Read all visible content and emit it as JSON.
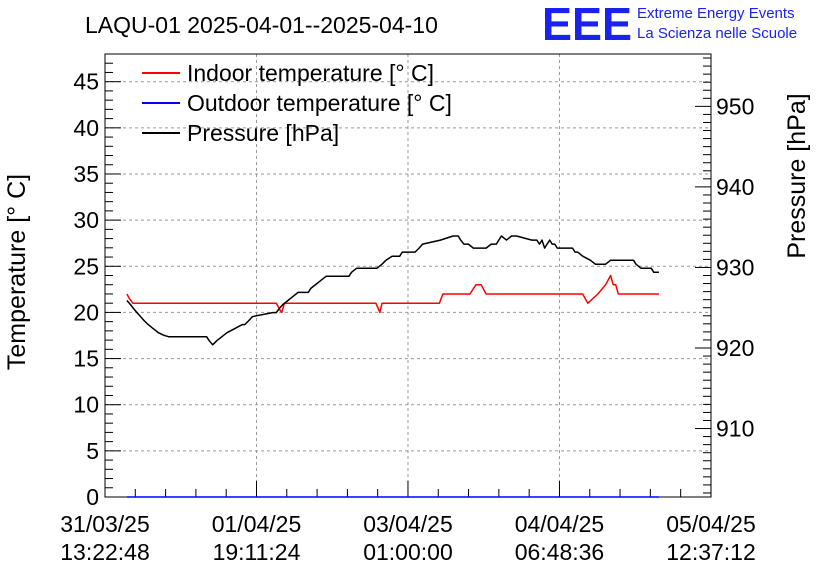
{
  "header": {
    "title": "LAQU-01 2025-04-01--2025-04-10",
    "logo_letters": "EEE",
    "logo_line1": "Extreme Energy Events",
    "logo_line2": "La Scienza nelle Scuole"
  },
  "chart_data": {
    "type": "line",
    "grid": true,
    "legend_position": "top-left",
    "x_unit": "hours since 31/03/25 13:22:48",
    "xlim": [
      0,
      119.25
    ],
    "x_ticks": [
      {
        "x": 0,
        "label_date": "31/03/25",
        "label_time": "13:22:48"
      },
      {
        "x": 29.81,
        "label_date": "01/04/25",
        "label_time": "19:11:24"
      },
      {
        "x": 59.62,
        "label_date": "03/04/25",
        "label_time": "01:00:00"
      },
      {
        "x": 89.43,
        "label_date": "04/04/25",
        "label_time": "06:48:36"
      },
      {
        "x": 119.25,
        "label_date": "05/04/25",
        "label_time": "12:37:12"
      }
    ],
    "y_left": {
      "label": "Temperature [° C]",
      "ylim": [
        0,
        48
      ],
      "ticks": [
        0,
        5,
        10,
        15,
        20,
        25,
        30,
        35,
        40,
        45
      ]
    },
    "y_right": {
      "label": "Pressure [hPa]",
      "ylim": [
        901.5,
        956.5
      ],
      "ticks": [
        910,
        920,
        930,
        940,
        950
      ]
    },
    "series": [
      {
        "name": "Indoor temperature [° C]",
        "axis": "left",
        "color": "#ff0000",
        "x": [
          4.3,
          4.8,
          5.5,
          6.3,
          33.7,
          34.5,
          34.8,
          35.3,
          53.3,
          53.7,
          54.1,
          54.5,
          65.8,
          66.5,
          71.8,
          73.0,
          74.0,
          75.0,
          94.0,
          95.0,
          97.0,
          98.5,
          99.5,
          100.0,
          100.5,
          101.0,
          109.0
        ],
        "y": [
          22,
          21.5,
          21,
          21,
          21,
          20.2,
          20,
          21,
          21,
          20.5,
          20,
          21,
          21,
          22,
          22,
          23,
          23,
          22,
          22,
          21,
          22,
          23,
          24,
          23,
          23,
          22,
          22
        ]
      },
      {
        "name": "Outdoor temperature [° C]",
        "axis": "left",
        "color": "#0000ff",
        "x": [
          4.3,
          109.0
        ],
        "y": [
          0,
          0
        ]
      },
      {
        "name": "Pressure [hPa]",
        "axis": "right",
        "color": "#000000",
        "x": [
          4.3,
          5.0,
          5.6,
          6.3,
          7.0,
          7.7,
          8.5,
          9.5,
          10.5,
          11.5,
          12.5,
          13.3,
          20.0,
          20.5,
          21.2,
          22.0,
          23.0,
          24.0,
          25.5,
          27.0,
          27.5,
          28.3,
          29.0,
          33.0,
          33.7,
          34.3,
          35.0,
          36.0,
          37.0,
          38.0,
          40.0,
          40.5,
          41.5,
          42.5,
          43.5,
          44.3,
          45.0,
          46.5,
          48.0,
          48.5,
          49.5,
          50.5,
          53.5,
          54.5,
          55.3,
          56.5,
          58.0,
          58.5,
          61.0,
          61.8,
          62.5,
          66.0,
          68.5,
          69.0,
          69.5,
          70.0,
          70.6,
          71.5,
          72.5,
          73.0,
          74.0,
          75.0,
          76.0,
          77.0,
          77.5,
          78.0,
          79.0,
          80.0,
          81.0,
          84.0,
          84.5,
          85.0,
          85.5,
          86.0,
          86.5,
          87.0,
          87.5,
          88.0,
          88.5,
          89.0,
          92.0,
          92.5,
          93.0,
          94.0,
          95.5,
          96.5,
          98.5,
          99.5,
          100.5,
          104.0,
          104.5,
          105.5,
          107.5,
          108.0,
          109.0
        ],
        "y": [
          925.9,
          925.4,
          924.9,
          924.4,
          923.9,
          923.4,
          922.9,
          922.4,
          921.9,
          921.6,
          921.4,
          921.4,
          921.4,
          920.9,
          920.4,
          920.9,
          921.4,
          921.9,
          922.4,
          922.9,
          922.9,
          923.4,
          923.9,
          924.4,
          924.4,
          924.9,
          925.4,
          925.9,
          926.4,
          926.9,
          926.9,
          927.4,
          927.9,
          928.4,
          928.9,
          928.9,
          928.9,
          928.9,
          928.9,
          929.4,
          929.9,
          929.9,
          929.9,
          930.4,
          930.9,
          931.4,
          931.4,
          931.9,
          931.9,
          932.4,
          932.9,
          933.4,
          933.9,
          933.9,
          933.9,
          933.4,
          932.9,
          932.9,
          932.4,
          932.4,
          932.4,
          932.4,
          932.9,
          932.9,
          933.4,
          933.9,
          933.4,
          933.9,
          933.9,
          933.4,
          933.4,
          933.4,
          932.9,
          933.4,
          932.4,
          932.9,
          933.4,
          932.9,
          932.9,
          932.4,
          932.4,
          931.9,
          931.9,
          931.4,
          930.9,
          930.4,
          930.4,
          930.9,
          930.9,
          930.9,
          930.4,
          929.9,
          929.9,
          929.4,
          929.4
        ]
      }
    ]
  }
}
